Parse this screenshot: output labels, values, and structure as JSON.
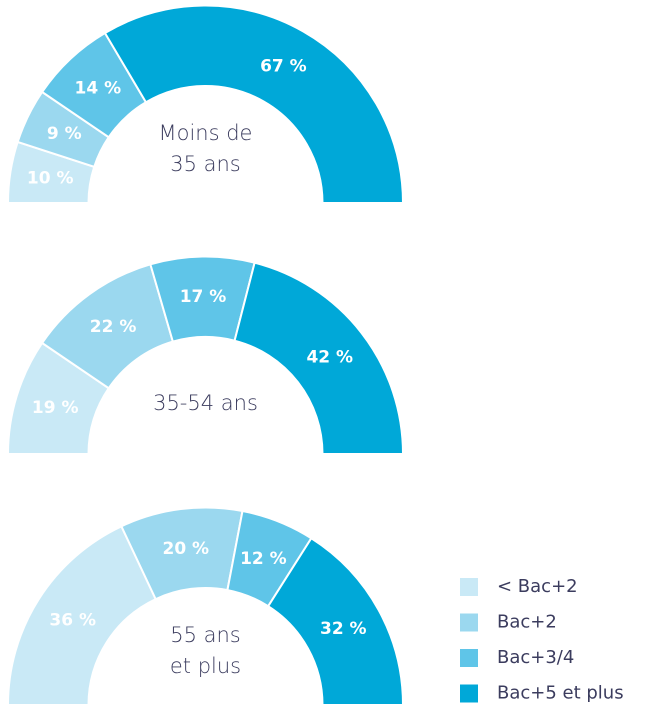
{
  "chart_data": [
    {
      "type": "pie",
      "shape": "semi-donut",
      "center_label": [
        "Moins de",
        "35 ans"
      ],
      "categories": [
        "< Bac+2",
        "Bac+2",
        "Bac+3/4",
        "Bac+5 et plus"
      ],
      "values": [
        10,
        9,
        14,
        67
      ],
      "value_labels": [
        "10 %",
        "9 %",
        "14 %",
        "67 %"
      ],
      "colors": [
        "#c9e9f6",
        "#9bd8ef",
        "#5fc5e8",
        "#00a8d8"
      ]
    },
    {
      "type": "pie",
      "shape": "semi-donut",
      "center_label": [
        "35-54 ans"
      ],
      "categories": [
        "< Bac+2",
        "Bac+2",
        "Bac+3/4",
        "Bac+5 et plus"
      ],
      "values": [
        19,
        22,
        17,
        42
      ],
      "value_labels": [
        "19 %",
        "22 %",
        "17 %",
        "42 %"
      ],
      "colors": [
        "#c9e9f6",
        "#9bd8ef",
        "#5fc5e8",
        "#00a8d8"
      ]
    },
    {
      "type": "pie",
      "shape": "semi-donut",
      "center_label": [
        "55 ans",
        "et plus"
      ],
      "categories": [
        "< Bac+2",
        "Bac+2",
        "Bac+3/4",
        "Bac+5 et plus"
      ],
      "values": [
        36,
        20,
        12,
        32
      ],
      "value_labels": [
        "36 %",
        "20 %",
        "12 %",
        "32 %"
      ],
      "colors": [
        "#c9e9f6",
        "#9bd8ef",
        "#5fc5e8",
        "#00a8d8"
      ]
    }
  ]
}
